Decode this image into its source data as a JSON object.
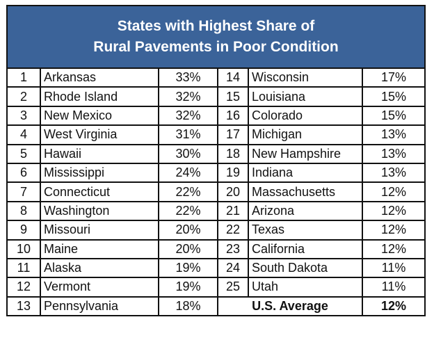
{
  "title_line1": "States with Highest Share of",
  "title_line2": "Rural Pavements in Poor Condition",
  "left": [
    {
      "rank": "1",
      "state": "Arkansas",
      "pct": "33%"
    },
    {
      "rank": "2",
      "state": "Rhode Island",
      "pct": "32%"
    },
    {
      "rank": "3",
      "state": "New Mexico",
      "pct": "32%"
    },
    {
      "rank": "4",
      "state": "West Virginia",
      "pct": "31%"
    },
    {
      "rank": "5",
      "state": "Hawaii",
      "pct": "30%"
    },
    {
      "rank": "6",
      "state": "Mississippi",
      "pct": "24%"
    },
    {
      "rank": "7",
      "state": "Connecticut",
      "pct": "22%"
    },
    {
      "rank": "8",
      "state": "Washington",
      "pct": "22%"
    },
    {
      "rank": "9",
      "state": "Missouri",
      "pct": "20%"
    },
    {
      "rank": "10",
      "state": "Maine",
      "pct": "20%"
    },
    {
      "rank": "11",
      "state": "Alaska",
      "pct": "19%"
    },
    {
      "rank": "12",
      "state": "Vermont",
      "pct": "19%"
    },
    {
      "rank": "13",
      "state": "Pennsylvania",
      "pct": "18%"
    }
  ],
  "right": [
    {
      "rank": "14",
      "state": "Wisconsin",
      "pct": "17%"
    },
    {
      "rank": "15",
      "state": "Louisiana",
      "pct": "15%"
    },
    {
      "rank": "16",
      "state": "Colorado",
      "pct": "15%"
    },
    {
      "rank": "17",
      "state": "Michigan",
      "pct": "13%"
    },
    {
      "rank": "18",
      "state": "New Hampshire",
      "pct": "13%"
    },
    {
      "rank": "19",
      "state": "Indiana",
      "pct": "13%"
    },
    {
      "rank": "20",
      "state": "Massachusetts",
      "pct": "12%"
    },
    {
      "rank": "21",
      "state": "Arizona",
      "pct": "12%"
    },
    {
      "rank": "22",
      "state": "Texas",
      "pct": "12%"
    },
    {
      "rank": "23",
      "state": "California",
      "pct": "12%"
    },
    {
      "rank": "24",
      "state": "South Dakota",
      "pct": "11%"
    },
    {
      "rank": "25",
      "state": "Utah",
      "pct": "11%"
    }
  ],
  "average": {
    "label": "U.S. Average",
    "pct": "12%"
  },
  "colors": {
    "header_bg": "#3b6399",
    "header_text": "#ffffff"
  }
}
